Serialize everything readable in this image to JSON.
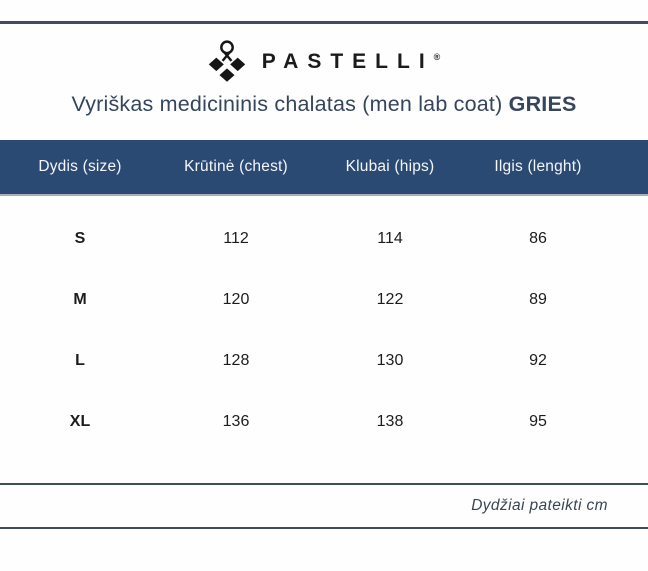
{
  "brand": {
    "name": "PASTELLI",
    "registered": "®",
    "logo_icon": "pastelli-diamond-ribbon-logo"
  },
  "title": {
    "main": "Vyriškas medicininis chalatas (men lab coat) ",
    "model": "GRIES"
  },
  "table": {
    "headers": [
      "Dydis (size)",
      "Krūtinė (chest)",
      "Klubai (hips)",
      "Ilgis (lenght)"
    ],
    "rows": [
      {
        "size": "S",
        "chest": "112",
        "hips": "114",
        "length": "86"
      },
      {
        "size": "M",
        "chest": "120",
        "hips": "122",
        "length": "89"
      },
      {
        "size": "L",
        "chest": "128",
        "hips": "130",
        "length": "92"
      },
      {
        "size": "XL",
        "chest": "136",
        "hips": "138",
        "length": "95"
      }
    ]
  },
  "footer": {
    "note": "Dydžiai pateikti cm"
  },
  "colors": {
    "header_bg": "#2b4a73",
    "line": "#3f4c5e",
    "title_text": "#35455c",
    "header_text": "#f4f6f8",
    "body_text": "#1c1c1c"
  }
}
